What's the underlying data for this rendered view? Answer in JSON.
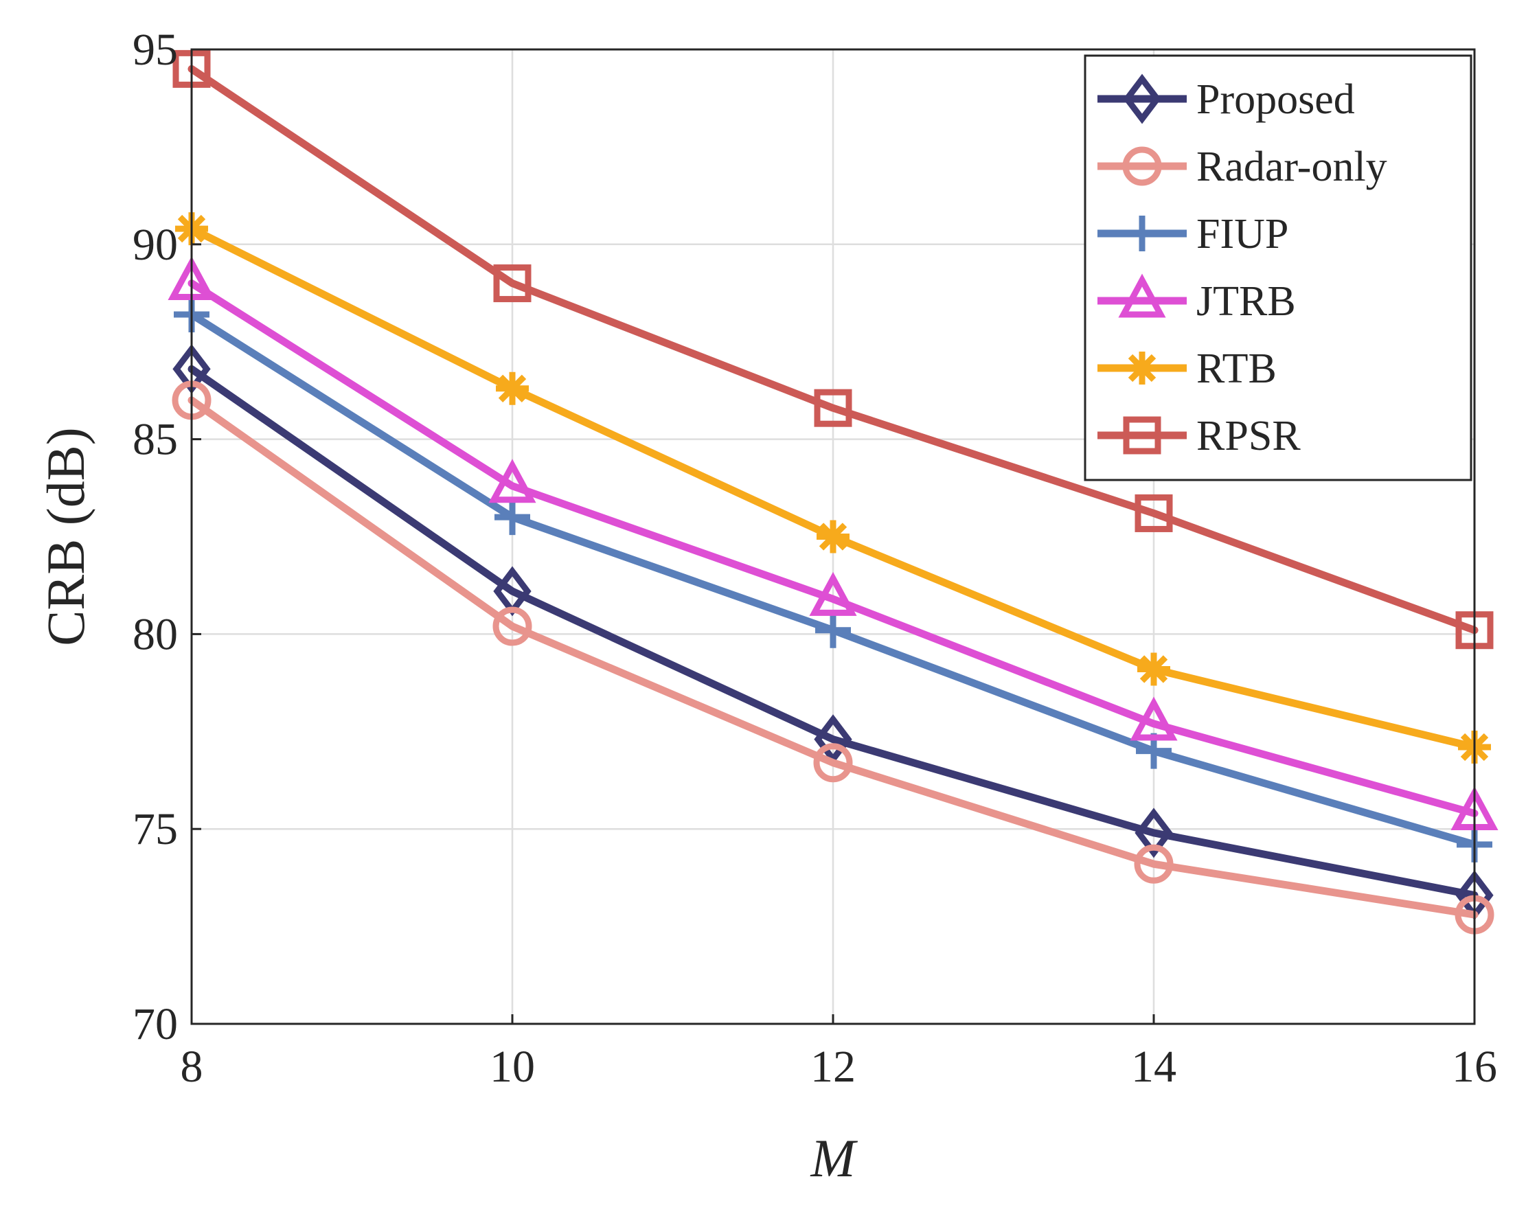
{
  "chart_data": {
    "type": "line",
    "xlabel": "M",
    "ylabel": "CRB (dB)",
    "x": [
      8,
      10,
      12,
      14,
      16
    ],
    "xlim": [
      8,
      16
    ],
    "ylim": [
      70,
      95
    ],
    "xticks": [
      "8",
      "10",
      "12",
      "14",
      "16"
    ],
    "yticks": [
      "70",
      "75",
      "80",
      "85",
      "90",
      "95"
    ],
    "xtick_values": [
      8,
      10,
      12,
      14,
      16
    ],
    "ytick_values": [
      70,
      75,
      80,
      85,
      90,
      95
    ],
    "grid": true,
    "legend_position": "top-right",
    "series": [
      {
        "name": "Proposed",
        "color": "#3b3a73",
        "marker": "diamond",
        "values": [
          86.8,
          81.1,
          77.3,
          74.9,
          73.3
        ]
      },
      {
        "name": "Radar-only",
        "color": "#e8948d",
        "marker": "circle",
        "values": [
          86.0,
          80.2,
          76.7,
          74.1,
          72.8
        ]
      },
      {
        "name": "FIUP",
        "color": "#5a7fba",
        "marker": "plus",
        "values": [
          88.2,
          83.0,
          80.1,
          77.0,
          74.6
        ]
      },
      {
        "name": "JTRB",
        "color": "#de4fd4",
        "marker": "triangle",
        "values": [
          89.0,
          83.8,
          80.9,
          77.7,
          75.4
        ]
      },
      {
        "name": "RTB",
        "color": "#f7aa1c",
        "marker": "asterisk",
        "values": [
          90.4,
          86.3,
          82.5,
          79.1,
          77.1
        ]
      },
      {
        "name": "RPSR",
        "color": "#cc5a56",
        "marker": "square",
        "values": [
          94.5,
          89.0,
          85.8,
          83.1,
          80.1
        ]
      }
    ]
  }
}
